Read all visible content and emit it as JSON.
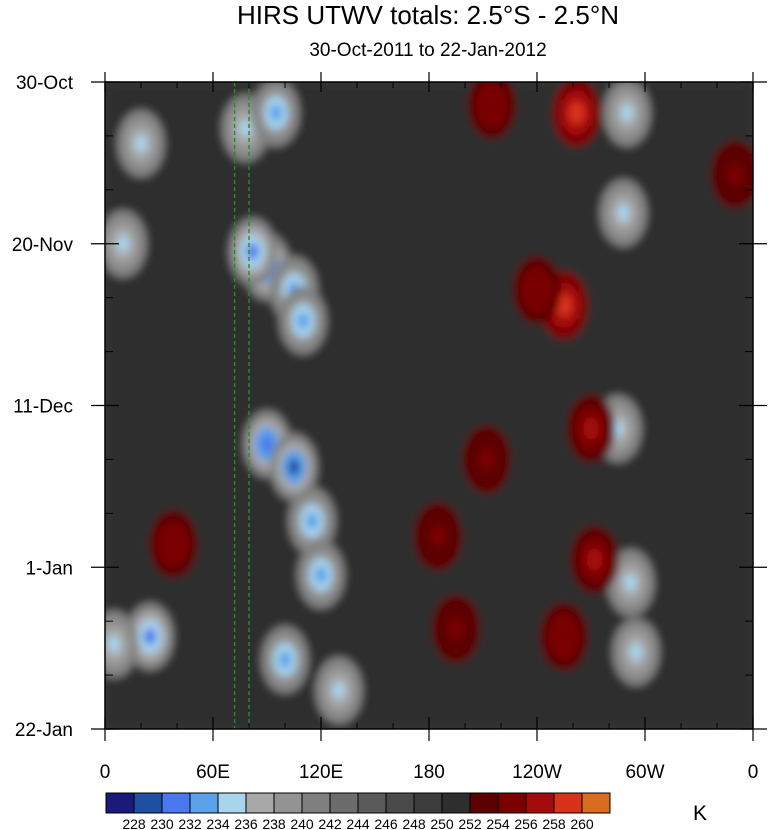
{
  "chart_data": {
    "type": "heatmap",
    "title": "HIRS UTWV totals: 2.5°S - 2.5°N",
    "subtitle": "30-Oct-2011 to 22-Jan-2012",
    "y_ticks": [
      {
        "label": "30-Oct",
        "day": 0
      },
      {
        "label": "20-Nov",
        "day": 21
      },
      {
        "label": "11-Dec",
        "day": 42
      },
      {
        "label": "1-Jan",
        "day": 63
      },
      {
        "label": "22-Jan",
        "day": 84
      }
    ],
    "x_ticks": [
      {
        "label": "0",
        "lon": 0
      },
      {
        "label": "60E",
        "lon": 60
      },
      {
        "label": "120E",
        "lon": 120
      },
      {
        "label": "180",
        "lon": 180
      },
      {
        "label": "120W",
        "lon": 240
      },
      {
        "label": "60W",
        "lon": 300
      },
      {
        "label": "0",
        "lon": 360
      }
    ],
    "xlim": [
      0,
      360
    ],
    "ylim_days": [
      0,
      84
    ],
    "colorbar": {
      "unit": "K",
      "levels": [
        "228",
        "230",
        "232",
        "234",
        "236",
        "238",
        "240",
        "242",
        "244",
        "246",
        "248",
        "250",
        "252",
        "254",
        "256",
        "258",
        "260"
      ],
      "colors": [
        "#1a1a7a",
        "#1f4fa0",
        "#4a78ee",
        "#5aa2ea",
        "#a8d4ec",
        "#a8a8a8",
        "#939393",
        "#7f7f7f",
        "#6c6c6c",
        "#5a5a5a",
        "#4a4a4a",
        "#3c3c3c",
        "#2e2e2e",
        "#5c0000",
        "#7a0000",
        "#a40b0b",
        "#d9321b",
        "#d86d22"
      ]
    },
    "reference_lines": {
      "lon": [
        72,
        80
      ],
      "color": "#2a8a2a",
      "style": "dashed"
    },
    "field_features": [
      {
        "lon": 78,
        "day": 6,
        "value": 235
      },
      {
        "lon": 95,
        "day": 4,
        "value": 233
      },
      {
        "lon": 90,
        "day": 24,
        "value": 230
      },
      {
        "lon": 82,
        "day": 22,
        "value": 231
      },
      {
        "lon": 105,
        "day": 27,
        "value": 232
      },
      {
        "lon": 110,
        "day": 31,
        "value": 233
      },
      {
        "lon": 90,
        "day": 47,
        "value": 230
      },
      {
        "lon": 105,
        "day": 50,
        "value": 229
      },
      {
        "lon": 115,
        "day": 57,
        "value": 232
      },
      {
        "lon": 120,
        "day": 64,
        "value": 233
      },
      {
        "lon": 100,
        "day": 75,
        "value": 233
      },
      {
        "lon": 130,
        "day": 79,
        "value": 234
      },
      {
        "lon": 20,
        "day": 8,
        "value": 234
      },
      {
        "lon": 25,
        "day": 72,
        "value": 231
      },
      {
        "lon": 10,
        "day": 21,
        "value": 235
      },
      {
        "lon": 5,
        "day": 73,
        "value": 235
      },
      {
        "lon": 290,
        "day": 4,
        "value": 235
      },
      {
        "lon": 288,
        "day": 17,
        "value": 235
      },
      {
        "lon": 285,
        "day": 45,
        "value": 234
      },
      {
        "lon": 292,
        "day": 65,
        "value": 235
      },
      {
        "lon": 295,
        "day": 74,
        "value": 234
      },
      {
        "lon": 262,
        "day": 4,
        "value": 258
      },
      {
        "lon": 255,
        "day": 29,
        "value": 259
      },
      {
        "lon": 240,
        "day": 27,
        "value": 255
      },
      {
        "lon": 215,
        "day": 3,
        "value": 255
      },
      {
        "lon": 270,
        "day": 45,
        "value": 256
      },
      {
        "lon": 272,
        "day": 62,
        "value": 256
      },
      {
        "lon": 255,
        "day": 72,
        "value": 255
      },
      {
        "lon": 185,
        "day": 59,
        "value": 254
      },
      {
        "lon": 195,
        "day": 71,
        "value": 254
      },
      {
        "lon": 38,
        "day": 60,
        "value": 255
      },
      {
        "lon": 350,
        "day": 12,
        "value": 254
      },
      {
        "lon": 212,
        "day": 49,
        "value": 254
      }
    ]
  }
}
